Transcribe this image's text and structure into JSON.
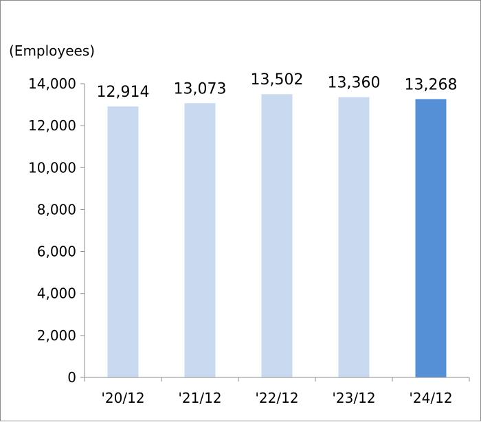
{
  "chart_data": {
    "type": "bar",
    "title": "",
    "unit_label": "(Employees)",
    "xlabel": "",
    "ylabel": "",
    "categories": [
      "'20/12",
      "'21/12",
      "'22/12",
      "'23/12",
      "'24/12"
    ],
    "values": [
      12914,
      13073,
      13502,
      13360,
      13268
    ],
    "value_labels": [
      "12,914",
      "13,073",
      "13,502",
      "13,360",
      "13,268"
    ],
    "ylim": [
      0,
      14000
    ],
    "yticks": [
      0,
      2000,
      4000,
      6000,
      8000,
      10000,
      12000,
      14000
    ],
    "ytick_labels": [
      "0",
      "2,000",
      "4,000",
      "6,000",
      "8,000",
      "10,000",
      "12,000",
      "14,000"
    ],
    "grid": false,
    "legend": "none",
    "colors": {
      "default_bar": "#c8d9f0",
      "highlight_bar": "#5590d6",
      "axis": "#8c8c8c"
    },
    "highlight_index": 4
  }
}
